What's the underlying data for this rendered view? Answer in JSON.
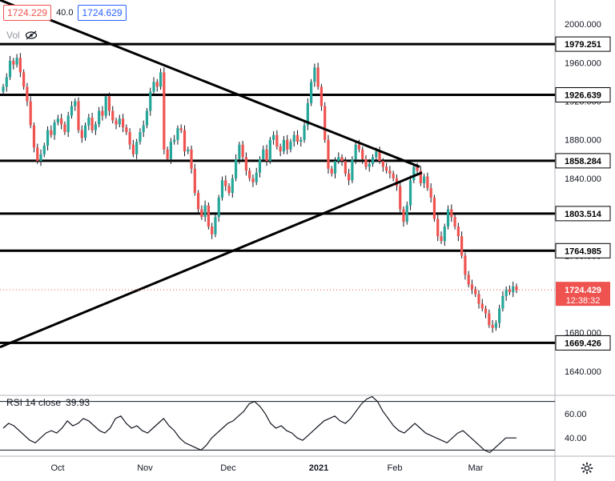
{
  "header": {
    "bid_price": "1724.229",
    "spread": "40.0",
    "ask_price": "1724.629",
    "volume_label": "Vol",
    "rsi_label": "RSI 14 close",
    "rsi_value": "39.93"
  },
  "icons": {
    "visibility": "eye-slash-icon",
    "settings": "gear-icon"
  },
  "colors": {
    "bull": "#26a69a",
    "bear": "#ef5350",
    "line": "#000000",
    "axis_text": "#131722",
    "rsi_line": "#131722"
  },
  "chart_data": {
    "type": "candlestick",
    "y_axis": {
      "ticks": [
        "2000.000",
        "1960.000",
        "1920.000",
        "1880.000",
        "1840.000",
        "1800.000",
        "1760.000",
        "1720.000",
        "1680.000",
        "1640.000"
      ],
      "range": [
        1615,
        2025
      ]
    },
    "x_axis": {
      "labels": [
        "Oct",
        "Nov",
        "Dec",
        "2021",
        "Feb",
        "Mar"
      ]
    },
    "horizontal_levels": [
      1979.251,
      1926.639,
      1858.284,
      1803.514,
      1764.985,
      1669.426
    ],
    "current_price": {
      "value": "1724.429",
      "countdown": "12:38:32"
    },
    "trendlines": [
      {
        "from": [
          "2020-09-01",
          2025
        ],
        "to": [
          "2021-02-10",
          1852
        ]
      },
      {
        "from": [
          "2020-09-01",
          1665
        ],
        "to": [
          "2021-02-10",
          1846
        ]
      }
    ],
    "candles_close": [
      1935,
      1945,
      1962,
      1958,
      1965,
      1950,
      1935,
      1920,
      1895,
      1872,
      1858,
      1865,
      1874,
      1890,
      1885,
      1898,
      1902,
      1896,
      1888,
      1905,
      1915,
      1920,
      1890,
      1882,
      1895,
      1903,
      1890,
      1896,
      1910,
      1905,
      1925,
      1910,
      1900,
      1896,
      1902,
      1893,
      1888,
      1875,
      1865,
      1878,
      1888,
      1895,
      1910,
      1930,
      1940,
      1935,
      1950,
      1870,
      1860,
      1878,
      1880,
      1892,
      1890,
      1868,
      1870,
      1850,
      1825,
      1808,
      1800,
      1812,
      1790,
      1782,
      1800,
      1820,
      1838,
      1832,
      1825,
      1840,
      1860,
      1875,
      1862,
      1848,
      1840,
      1836,
      1846,
      1860,
      1870,
      1858,
      1880,
      1885,
      1873,
      1868,
      1880,
      1870,
      1878,
      1885,
      1878,
      1880,
      1895,
      1918,
      1940,
      1955,
      1935,
      1915,
      1880,
      1850,
      1845,
      1858,
      1862,
      1858,
      1845,
      1838,
      1860,
      1875,
      1870,
      1860,
      1852,
      1855,
      1862,
      1868,
      1858,
      1852,
      1848,
      1845,
      1840,
      1832,
      1808,
      1795,
      1812,
      1838,
      1852,
      1848,
      1835,
      1842,
      1830,
      1820,
      1798,
      1780,
      1775,
      1790,
      1808,
      1800,
      1790,
      1780,
      1760,
      1740,
      1730,
      1725,
      1720,
      1710,
      1705,
      1700,
      1688,
      1685,
      1690,
      1705,
      1718,
      1725,
      1722,
      1728,
      1724
    ],
    "rsi": {
      "levels": [
        70,
        30
      ],
      "ticks": [
        "60.00",
        "40.00"
      ],
      "last": 39.93,
      "values": [
        48,
        52,
        50,
        46,
        42,
        38,
        36,
        40,
        44,
        46,
        44,
        48,
        54,
        50,
        52,
        56,
        54,
        50,
        46,
        44,
        48,
        56,
        58,
        52,
        48,
        50,
        46,
        44,
        48,
        52,
        56,
        50,
        46,
        40,
        36,
        34,
        32,
        30,
        34,
        40,
        44,
        48,
        52,
        54,
        58,
        62,
        68,
        70,
        66,
        60,
        52,
        48,
        50,
        46,
        44,
        40,
        38,
        42,
        46,
        50,
        54,
        56,
        58,
        54,
        52,
        56,
        62,
        68,
        72,
        74,
        70,
        62,
        56,
        50,
        46,
        44,
        48,
        52,
        48,
        44,
        42,
        40,
        38,
        36,
        40,
        44,
        46,
        42,
        38,
        34,
        30,
        28,
        32,
        36,
        40,
        40,
        40
      ]
    }
  }
}
